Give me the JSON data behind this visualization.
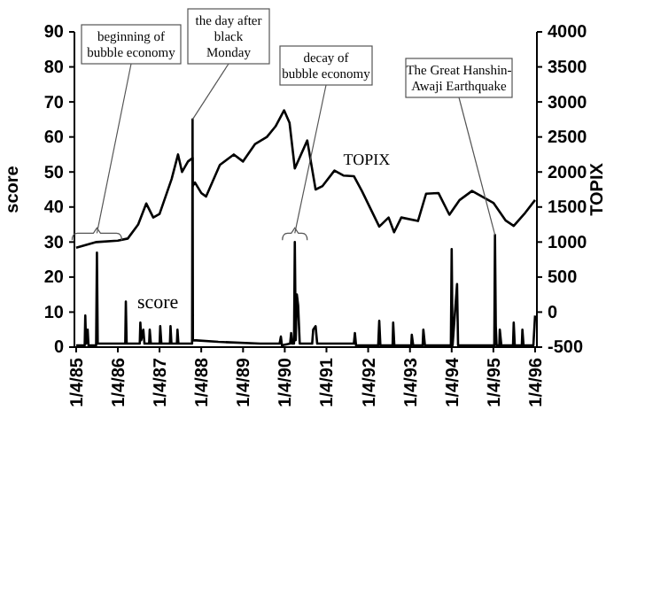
{
  "chart_data": {
    "type": "line",
    "ylabel": "score",
    "y2label": "TOPIX",
    "legend": false,
    "grid": false,
    "xlim": [
      "1984-12-20",
      "1996-01-20"
    ],
    "xticks": [
      {
        "value": "1985-01-04",
        "label": "1/4/85"
      },
      {
        "value": "1986-01-04",
        "label": "1/4/86"
      },
      {
        "value": "1987-01-04",
        "label": "1/4/87"
      },
      {
        "value": "1988-01-04",
        "label": "1/4/88"
      },
      {
        "value": "1989-01-04",
        "label": "1/4/89"
      },
      {
        "value": "1990-01-04",
        "label": "1/4/90"
      },
      {
        "value": "1991-01-04",
        "label": "1/4/91"
      },
      {
        "value": "1992-01-04",
        "label": "1/4/92"
      },
      {
        "value": "1993-01-04",
        "label": "1/4/93"
      },
      {
        "value": "1994-01-04",
        "label": "1/4/94"
      },
      {
        "value": "1995-01-04",
        "label": "1/4/95"
      },
      {
        "value": "1996-01-04",
        "label": "1/4/96"
      }
    ],
    "ylim": [
      0,
      90
    ],
    "yticks": [
      0,
      10,
      20,
      30,
      40,
      50,
      60,
      70,
      80,
      90
    ],
    "y2lim": [
      -500,
      4000
    ],
    "y2ticks": [
      -500,
      0,
      500,
      1000,
      1500,
      2000,
      2500,
      3000,
      3500,
      4000
    ],
    "series": [
      {
        "name": "score",
        "color": "#000000",
        "x": [
          "1985-01-04",
          "1985-03-20",
          "1985-03-25",
          "1985-04-01",
          "1985-04-15",
          "1985-04-22",
          "1985-06-28",
          "1985-07-05",
          "1985-07-12",
          "1985-10-01",
          "1986-03-10",
          "1986-03-15",
          "1986-03-22",
          "1986-07-15",
          "1986-07-20",
          "1986-07-28",
          "1986-08-15",
          "1986-08-25",
          "1986-10-05",
          "1986-10-10",
          "1986-10-20",
          "1987-01-05",
          "1987-01-10",
          "1987-01-20",
          "1987-04-05",
          "1987-04-10",
          "1987-04-18",
          "1987-06-05",
          "1987-06-10",
          "1987-06-18",
          "1987-10-16",
          "1987-10-20",
          "1987-10-23",
          "1988-06-01",
          "1989-06-01",
          "1989-11-20",
          "1989-12-01",
          "1989-12-10",
          "1990-02-20",
          "1990-03-01",
          "1990-03-10",
          "1990-03-26",
          "1990-04-02",
          "1990-04-10",
          "1990-04-20",
          "1990-05-01",
          "1990-05-15",
          "1990-09-01",
          "1990-09-10",
          "1990-10-01",
          "1990-10-15",
          "1991-09-01",
          "1991-09-10",
          "1991-09-20",
          "1992-04-01",
          "1992-04-10",
          "1992-04-20",
          "1992-08-05",
          "1992-08-10",
          "1992-08-20",
          "1993-01-15",
          "1993-01-20",
          "1993-02-01",
          "1993-04-25",
          "1993-05-01",
          "1993-05-15",
          "1993-12-28",
          "1994-01-04",
          "1994-01-12",
          "1994-02-20",
          "1994-03-01",
          "1995-01-12",
          "1995-01-18",
          "1995-01-25",
          "1995-02-01",
          "1995-02-25",
          "1995-03-01",
          "1995-03-15",
          "1995-06-25",
          "1995-07-01",
          "1995-07-10",
          "1995-09-10",
          "1995-09-15",
          "1995-09-25",
          "1995-12-20",
          "1996-01-04"
        ],
        "values": [
          0.5,
          0.5,
          9,
          1,
          5,
          0.5,
          0.5,
          27,
          1,
          1,
          1,
          13,
          1,
          1,
          7,
          2,
          5,
          1,
          1,
          5,
          1,
          1,
          6,
          1,
          1,
          6,
          1,
          1,
          5,
          1,
          1,
          65,
          2,
          1.5,
          1,
          1,
          3,
          0.5,
          1,
          4,
          1,
          1,
          30,
          2,
          15,
          12,
          1,
          1,
          5,
          6,
          1,
          1,
          4,
          0.5,
          0.5,
          7.5,
          0.5,
          0.5,
          7,
          0.5,
          0.5,
          3.5,
          0.5,
          0.5,
          5,
          0.5,
          0.5,
          28,
          0.5,
          18,
          0.5,
          0.5,
          32,
          6,
          0.5,
          0.5,
          5,
          0.5,
          0.5,
          7,
          0.5,
          0.5,
          5,
          0.5,
          0.5,
          9
        ]
      },
      {
        "name": "TOPIX",
        "color": "#000000",
        "axis": "y2",
        "x": [
          "1985-01-04",
          "1985-07-01",
          "1986-01-04",
          "1986-04-01",
          "1986-07-01",
          "1986-09-10",
          "1986-11-10",
          "1987-01-04",
          "1987-04-20",
          "1987-06-15",
          "1987-07-20",
          "1987-09-10",
          "1987-10-19",
          "1987-10-21",
          "1987-11-10",
          "1988-01-04",
          "1988-02-15",
          "1988-06-15",
          "1988-10-15",
          "1989-01-04",
          "1989-04-20",
          "1989-08-01",
          "1989-10-15",
          "1989-12-29",
          "1990-02-15",
          "1990-04-02",
          "1990-07-20",
          "1990-10-01",
          "1990-12-01",
          "1991-03-15",
          "1991-06-01",
          "1991-09-01",
          "1991-11-10",
          "1992-04-10",
          "1992-07-01",
          "1992-08-18",
          "1992-10-20",
          "1993-03-15",
          "1993-05-25",
          "1993-09-10",
          "1993-12-15",
          "1994-03-15",
          "1994-07-01",
          "1995-01-04",
          "1995-04-20",
          "1995-07-01",
          "1995-10-01",
          "1996-01-04"
        ],
        "values": [
          920,
          1000,
          1020,
          1050,
          1250,
          1550,
          1350,
          1400,
          1900,
          2250,
          2000,
          2150,
          2200,
          1800,
          1850,
          1700,
          1650,
          2100,
          2250,
          2150,
          2400,
          2500,
          2650,
          2880,
          2700,
          2050,
          2450,
          1750,
          1800,
          2020,
          1950,
          1940,
          1730,
          1220,
          1350,
          1140,
          1350,
          1300,
          1690,
          1700,
          1390,
          1600,
          1730,
          1560,
          1310,
          1230,
          1400,
          1600
        ]
      }
    ],
    "annotations": [
      {
        "text": "beginning of\nbubble economy",
        "x": "1985-07-05",
        "y": 30
      },
      {
        "text": "the day after\nblack\nMonday",
        "x": "1987-10-20",
        "y": 65
      },
      {
        "text": "decay of\nbubble economy",
        "x": "1990-04-02",
        "y": 30
      },
      {
        "text": "The Great Hanshin-\nAwaji Earthquake",
        "x": "1995-01-18",
        "y": 32
      }
    ]
  }
}
